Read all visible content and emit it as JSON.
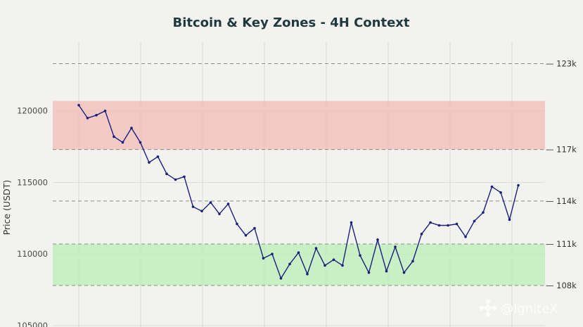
{
  "chart_data": {
    "type": "line",
    "title": "Bitcoin & Key Zones - 4H Context",
    "ylabel": "Price (USDT)",
    "ylim": [
      104900,
      124800
    ],
    "yticks": [
      105000,
      110000,
      115000,
      120000
    ],
    "grid": true,
    "series": [
      {
        "color": "#1a1f7a",
        "values": [
          120400,
          119500,
          119700,
          120000,
          118200,
          117800,
          118800,
          117800,
          116400,
          116800,
          115600,
          115200,
          115400,
          113300,
          113000,
          113600,
          112800,
          113500,
          112100,
          111300,
          111800,
          109700,
          110000,
          108300,
          109300,
          110100,
          108600,
          110400,
          109200,
          109600,
          109200,
          112200,
          109900,
          108700,
          111000,
          108800,
          110500,
          108700,
          109500,
          111400,
          112200,
          112000,
          112000,
          112100,
          111200,
          112300,
          112900,
          114700,
          114300,
          112400,
          114800
        ]
      }
    ],
    "zones": [
      {
        "name": "resistance",
        "from": 117300,
        "to": 120700,
        "color": "#f3b8b4"
      },
      {
        "name": "support",
        "from": 107800,
        "to": 110700,
        "color": "#b8f0b4"
      }
    ],
    "levels": [
      {
        "value": 123300,
        "label": "123k"
      },
      {
        "value": 117300,
        "label": "117k"
      },
      {
        "value": 113700,
        "label": "114k"
      },
      {
        "value": 110700,
        "label": "111k"
      },
      {
        "value": 107800,
        "label": "108k"
      }
    ]
  },
  "watermark": "@IgniteX"
}
